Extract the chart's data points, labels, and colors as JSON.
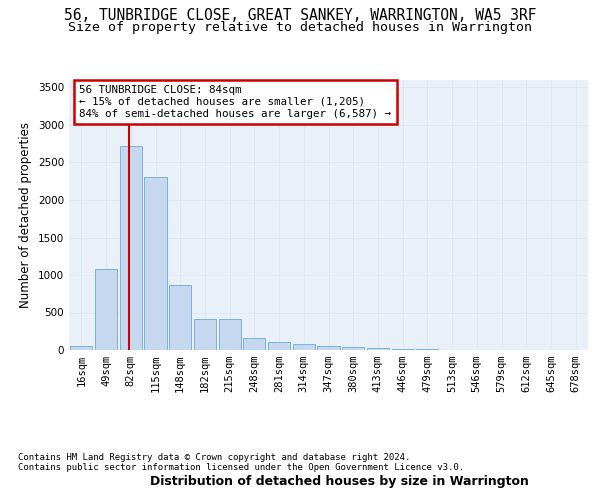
{
  "title_line1": "56, TUNBRIDGE CLOSE, GREAT SANKEY, WARRINGTON, WA5 3RF",
  "title_line2": "Size of property relative to detached houses in Warrington",
  "xlabel": "Distribution of detached houses by size in Warrington",
  "ylabel": "Number of detached properties",
  "footnote1": "Contains HM Land Registry data © Crown copyright and database right 2024.",
  "footnote2": "Contains public sector information licensed under the Open Government Licence v3.0.",
  "bar_labels": [
    "16sqm",
    "49sqm",
    "82sqm",
    "115sqm",
    "148sqm",
    "182sqm",
    "215sqm",
    "248sqm",
    "281sqm",
    "314sqm",
    "347sqm",
    "380sqm",
    "413sqm",
    "446sqm",
    "479sqm",
    "513sqm",
    "546sqm",
    "579sqm",
    "612sqm",
    "645sqm",
    "678sqm"
  ],
  "bar_values": [
    60,
    1080,
    2720,
    2300,
    870,
    420,
    420,
    160,
    110,
    75,
    55,
    40,
    30,
    18,
    10,
    5,
    3,
    2,
    1,
    1,
    0
  ],
  "bar_color": "#c5d8f0",
  "bar_edgecolor": "#6aabd2",
  "grid_color": "#dde8f5",
  "redline_x": 1.93,
  "annotation_text": "56 TUNBRIDGE CLOSE: 84sqm\n← 15% of detached houses are smaller (1,205)\n84% of semi-detached houses are larger (6,587) →",
  "annotation_box_color": "#ffffff",
  "annotation_box_edgecolor": "#cc0000",
  "ylim": [
    0,
    3600
  ],
  "yticks": [
    0,
    500,
    1000,
    1500,
    2000,
    2500,
    3000,
    3500
  ],
  "background_color": "#eaf0f8",
  "fig_background": "#ffffff",
  "title_fontsize": 10.5,
  "subtitle_fontsize": 9.5,
  "ylabel_fontsize": 8.5,
  "xlabel_fontsize": 9,
  "tick_fontsize": 7.5,
  "annotation_fontsize": 7.8,
  "footnote_fontsize": 6.5
}
